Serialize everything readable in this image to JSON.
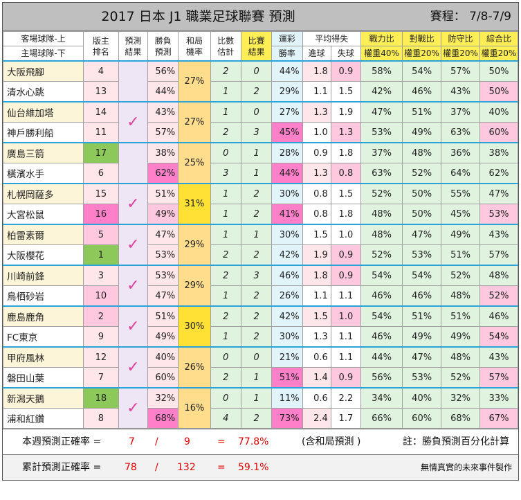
{
  "title": "2017 日本 J1 職業足球聯賽 預測",
  "schedule": "賽程： 7/8-7/9",
  "headers": {
    "team_top": "客場球隊-上",
    "team_bottom": "主場球隊-下",
    "rank": "版主\n排名",
    "pred_result": "預測\n結果",
    "win_pred": "勝負\n預測",
    "draw_prob": "和局\n機率",
    "score_est": "比數\n估計",
    "match_result": "比賽\n結果",
    "lottery": "運彩",
    "lottery_sub": "勝率",
    "avg": "平均得失",
    "avg_for": "進球",
    "avg_against": "失球",
    "power": "戰力比",
    "power_w": "權重40%",
    "h2h": "對戰比",
    "h2h_w": "權重20%",
    "defense": "防守比",
    "defense_w": "權重20%",
    "overall": "綜合比",
    "overall_w": "權重20%"
  },
  "matches": [
    {
      "draw": "27%",
      "correct": false,
      "teams": [
        {
          "name": "大阪飛腳",
          "rank": "4",
          "pred": "56%",
          "score": "2",
          "result": "0",
          "lot": "44%",
          "gf": "1.8",
          "ga": "0.9",
          "pw": "58%",
          "hh": "54%",
          "df": "57%",
          "ov": "50%"
        },
        {
          "name": "清水心跳",
          "rank": "13",
          "pred": "44%",
          "score": "1",
          "result": "2",
          "lot": "29%",
          "gf": "1.1",
          "ga": "1.5",
          "pw": "42%",
          "hh": "46%",
          "df": "43%",
          "ov": "50%"
        }
      ]
    },
    {
      "draw": "27%",
      "correct": true,
      "teams": [
        {
          "name": "仙台維加塔",
          "rank": "14",
          "pred": "43%",
          "score": "1",
          "result": "0",
          "lot": "27%",
          "gf": "1.3",
          "ga": "1.9",
          "pw": "47%",
          "hh": "51%",
          "df": "37%",
          "ov": "40%"
        },
        {
          "name": "神戶勝利船",
          "rank": "11",
          "pred": "57%",
          "score": "2",
          "result": "3",
          "lot": "45%",
          "gf": "1.0",
          "ga": "1.3",
          "pw": "53%",
          "hh": "49%",
          "df": "63%",
          "ov": "60%"
        }
      ]
    },
    {
      "draw": "25%",
      "correct": false,
      "teams": [
        {
          "name": "廣島三箭",
          "rank": "17",
          "pred": "38%",
          "score": "0",
          "result": "1",
          "lot": "28%",
          "gf": "0.9",
          "ga": "1.8",
          "pw": "37%",
          "hh": "48%",
          "df": "36%",
          "ov": "38%"
        },
        {
          "name": "橫濱水手",
          "rank": "6",
          "pred": "62%",
          "score": "3",
          "result": "1",
          "lot": "44%",
          "gf": "1.3",
          "ga": "0.8",
          "pw": "63%",
          "hh": "52%",
          "df": "64%",
          "ov": "62%"
        }
      ]
    },
    {
      "draw": "31%",
      "correct": true,
      "teams": [
        {
          "name": "札幌岡薩多",
          "rank": "15",
          "pred": "51%",
          "score": "1",
          "result": "2",
          "lot": "30%",
          "gf": "0.8",
          "ga": "1.5",
          "pw": "52%",
          "hh": "50%",
          "df": "55%",
          "ov": "47%"
        },
        {
          "name": "大宮松鼠",
          "rank": "16",
          "pred": "49%",
          "score": "1",
          "result": "2",
          "lot": "41%",
          "gf": "0.8",
          "ga": "1.8",
          "pw": "48%",
          "hh": "50%",
          "df": "45%",
          "ov": "53%"
        }
      ]
    },
    {
      "draw": "29%",
      "correct": true,
      "teams": [
        {
          "name": "柏雷素爾",
          "rank": "5",
          "pred": "47%",
          "score": "1",
          "result": "1",
          "lot": "30%",
          "gf": "1.5",
          "ga": "1.0",
          "pw": "48%",
          "hh": "47%",
          "df": "49%",
          "ov": "43%"
        },
        {
          "name": "大阪櫻花",
          "rank": "1",
          "pred": "53%",
          "score": "2",
          "result": "2",
          "lot": "42%",
          "gf": "1.9",
          "ga": "0.9",
          "pw": "52%",
          "hh": "53%",
          "df": "51%",
          "ov": "57%"
        }
      ]
    },
    {
      "draw": "29%",
      "correct": true,
      "teams": [
        {
          "name": "川崎前鋒",
          "rank": "3",
          "pred": "53%",
          "score": "2",
          "result": "3",
          "lot": "46%",
          "gf": "1.8",
          "ga": "0.9",
          "pw": "54%",
          "hh": "54%",
          "df": "52%",
          "ov": "48%"
        },
        {
          "name": "鳥栖砂岩",
          "rank": "10",
          "pred": "47%",
          "score": "1",
          "result": "2",
          "lot": "26%",
          "gf": "1.1",
          "ga": "1.1",
          "pw": "46%",
          "hh": "46%",
          "df": "48%",
          "ov": "52%"
        }
      ]
    },
    {
      "draw": "30%",
      "correct": true,
      "teams": [
        {
          "name": "鹿島鹿角",
          "rank": "2",
          "pred": "51%",
          "score": "2",
          "result": "2",
          "lot": "42%",
          "gf": "1.5",
          "ga": "1.0",
          "pw": "54%",
          "hh": "51%",
          "df": "51%",
          "ov": "46%"
        },
        {
          "name": "FC東京",
          "rank": "9",
          "pred": "49%",
          "score": "1",
          "result": "2",
          "lot": "30%",
          "gf": "1.3",
          "ga": "1.1",
          "pw": "46%",
          "hh": "49%",
          "df": "49%",
          "ov": "54%"
        }
      ]
    },
    {
      "draw": "26%",
      "correct": true,
      "teams": [
        {
          "name": "甲府風林",
          "rank": "12",
          "pred": "40%",
          "score": "0",
          "result": "0",
          "lot": "21%",
          "gf": "0.6",
          "ga": "1.1",
          "pw": "44%",
          "hh": "47%",
          "df": "48%",
          "ov": "43%"
        },
        {
          "name": "磐田山葉",
          "rank": "7",
          "pred": "60%",
          "score": "2",
          "result": "1",
          "lot": "51%",
          "gf": "1.4",
          "ga": "0.9",
          "pw": "56%",
          "hh": "53%",
          "df": "52%",
          "ov": "57%"
        }
      ]
    },
    {
      "draw": "16%",
      "correct": true,
      "teams": [
        {
          "name": "新潟天鵝",
          "rank": "18",
          "pred": "32%",
          "score": "0",
          "result": "1",
          "lot": "11%",
          "gf": "0.6",
          "ga": "2.2",
          "pw": "34%",
          "hh": "40%",
          "df": "32%",
          "ov": "33%"
        },
        {
          "name": "浦和紅鑽",
          "rank": "8",
          "pred": "68%",
          "score": "4",
          "result": "2",
          "lot": "73%",
          "gf": "2.4",
          "ga": "1.7",
          "pw": "66%",
          "hh": "60%",
          "df": "68%",
          "ov": "67%"
        }
      ]
    }
  ],
  "footer": {
    "week_label": "本週預測正確率 =",
    "week_hit": "7",
    "slash": "/",
    "week_total": "9",
    "eq": "=",
    "week_rate": "77.8%",
    "week_note": "(含和局預測 )",
    "note": "註：勝負預測百分化計算",
    "cum_label": "累計預測正確率 =",
    "cum_hit": "78",
    "cum_total": "132",
    "cum_rate": "59.1%",
    "credit": "無情真實的未來事件製作"
  },
  "tick_symbol": "✓",
  "colors": {
    "tick": "#e0409c",
    "red": "#e00000",
    "yellow": "#ffe135",
    "pink": "#ff80c8",
    "green": "#8cc85a"
  }
}
